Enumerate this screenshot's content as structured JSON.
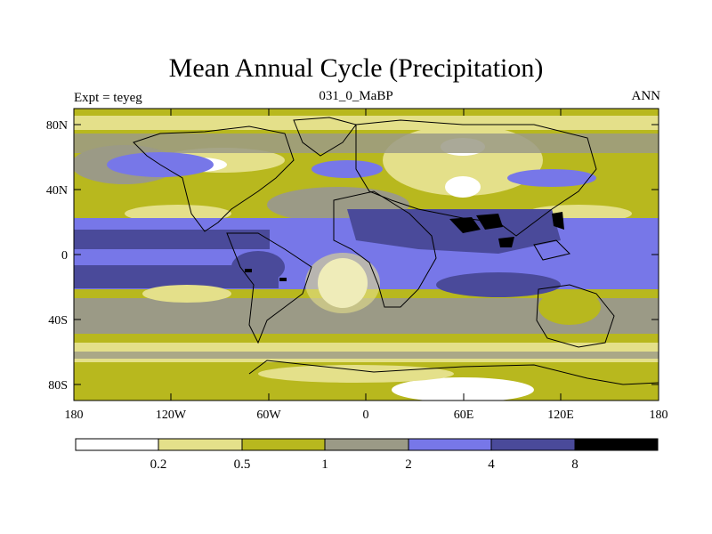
{
  "title": "Mean Annual Cycle (Precipitation)",
  "subtitle_left": "Expt = teyeg",
  "subtitle_center": "031_0_MaBP",
  "subtitle_right": "ANN",
  "lat_ticks": [
    "80N",
    "40N",
    "0",
    "40S",
    "80S"
  ],
  "lon_ticks": [
    "180",
    "120W",
    "60W",
    "0",
    "60E",
    "120E",
    "180"
  ],
  "legend": {
    "labels": [
      "0.2",
      "0.5",
      "1",
      "2",
      "4",
      "8"
    ],
    "colors": [
      "#ffffff",
      "#e4e08a",
      "#b8b81e",
      "#9b9a86",
      "#7777e8",
      "#4a4a9a",
      "#000000"
    ]
  }
}
